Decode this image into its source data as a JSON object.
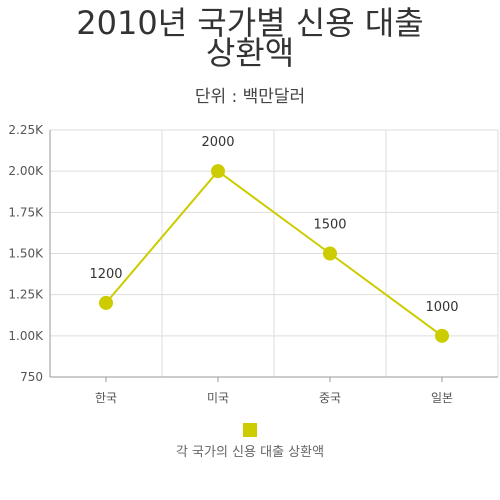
{
  "chart_data": {
    "type": "line",
    "title_lines": [
      "2010년 국가별 신용 대출",
      "상환액"
    ],
    "subtitle": "단위 : 백만달러",
    "categories": [
      "한국",
      "미국",
      "중국",
      "일본"
    ],
    "series": [
      {
        "name": "각 국가의 신용 대출 상환액",
        "values": [
          1200,
          2000,
          1500,
          1000
        ],
        "color": "#cccc00"
      }
    ],
    "ylim": [
      750,
      2250
    ],
    "y_ticks": [
      750,
      1000,
      1250,
      1500,
      1750,
      2000,
      2250
    ],
    "y_tick_labels": [
      "750",
      "1.00K",
      "1.25K",
      "1.50K",
      "1.75K",
      "2.00K",
      "2.25K"
    ],
    "data_labels": [
      "1200",
      "2000",
      "1500",
      "1000"
    ],
    "grid": true,
    "legend_position": "bottom-center"
  },
  "colors": {
    "series": "#cccc00",
    "grid": "#dddddd",
    "axis": "#999999",
    "text": "#333333"
  }
}
